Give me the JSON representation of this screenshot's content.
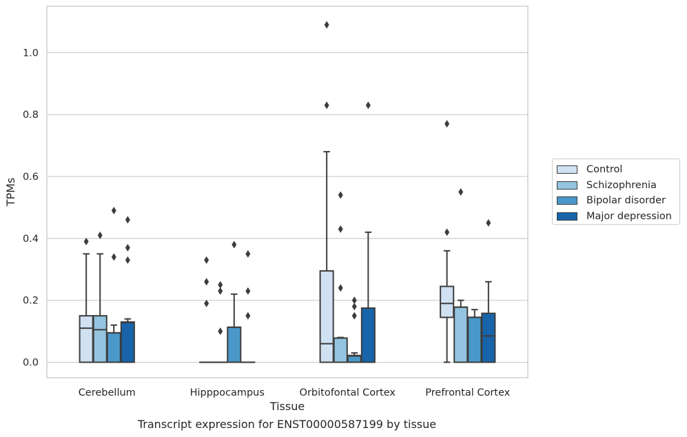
{
  "caption": "Transcript expression for ENST00000587199 by tissue",
  "chart_data": {
    "type": "box",
    "xlabel": "Tissue",
    "ylabel": "TPMs",
    "ylim": [
      -0.05,
      1.15
    ],
    "yticks": [
      "0.0",
      "0.2",
      "0.4",
      "0.6",
      "0.8",
      "1.0"
    ],
    "grid": true,
    "legend_position": "right",
    "categories": [
      "Cerebellum",
      "Hipppocampus",
      "Orbitofontal Cortex",
      "Prefrontal Cortex"
    ],
    "series": [
      {
        "name": "Control",
        "color": "#d0e1f2",
        "boxes": [
          {
            "whislo": 0,
            "q1": 0,
            "med": 0.11,
            "q3": 0.15,
            "whishi": 0.35,
            "fliers": [
              0.39
            ]
          },
          {
            "whislo": 0,
            "q1": 0,
            "med": 0,
            "q3": 0,
            "whishi": 0,
            "fliers": [
              0.19,
              0.26,
              0.33
            ]
          },
          {
            "whislo": 0,
            "q1": 0,
            "med": 0.06,
            "q3": 0.295,
            "whishi": 0.68,
            "fliers": [
              0.83,
              1.09
            ]
          },
          {
            "whislo": 0,
            "q1": 0.145,
            "med": 0.19,
            "q3": 0.245,
            "whishi": 0.36,
            "fliers": [
              0.42,
              0.77
            ]
          }
        ]
      },
      {
        "name": "Schizophrenia",
        "color": "#94c4df",
        "boxes": [
          {
            "whislo": 0,
            "q1": 0,
            "med": 0.105,
            "q3": 0.15,
            "whishi": 0.35,
            "fliers": [
              0.41
            ]
          },
          {
            "whislo": 0,
            "q1": 0,
            "med": 0,
            "q3": 0,
            "whishi": 0,
            "fliers": [
              0.1,
              0.23,
              0.25
            ]
          },
          {
            "whislo": 0,
            "q1": 0,
            "med": 0.078,
            "q3": 0.078,
            "whishi": 0.08,
            "fliers": [
              0.24,
              0.43,
              0.54
            ]
          },
          {
            "whislo": 0,
            "q1": 0,
            "med": 0.178,
            "q3": 0.178,
            "whishi": 0.2,
            "fliers": [
              0.55
            ]
          }
        ]
      },
      {
        "name": "Bipolar disorder",
        "color": "#4a98c9",
        "boxes": [
          {
            "whislo": 0,
            "q1": 0,
            "med": 0.095,
            "q3": 0.095,
            "whishi": 0.12,
            "fliers": [
              0.34,
              0.49
            ]
          },
          {
            "whislo": 0,
            "q1": 0,
            "med": 0.113,
            "q3": 0.113,
            "whishi": 0.22,
            "fliers": [
              0.38
            ]
          },
          {
            "whislo": 0,
            "q1": 0,
            "med": 0.02,
            "q3": 0.022,
            "whishi": 0.03,
            "fliers": [
              0.15,
              0.18,
              0.2
            ]
          },
          {
            "whislo": 0,
            "q1": 0,
            "med": 0.145,
            "q3": 0.145,
            "whishi": 0.17,
            "fliers": []
          }
        ]
      },
      {
        "name": "Major depression",
        "color": "#1764ab",
        "boxes": [
          {
            "whislo": 0,
            "q1": 0,
            "med": 0.128,
            "q3": 0.13,
            "whishi": 0.14,
            "fliers": [
              0.33,
              0.37,
              0.46
            ]
          },
          {
            "whislo": 0,
            "q1": 0,
            "med": 0,
            "q3": 0,
            "whishi": 0,
            "fliers": [
              0.15,
              0.23,
              0.35
            ]
          },
          {
            "whislo": 0,
            "q1": 0,
            "med": 0.175,
            "q3": 0.175,
            "whishi": 0.42,
            "fliers": [
              0.83
            ]
          },
          {
            "whislo": 0,
            "q1": 0,
            "med": 0.085,
            "q3": 0.158,
            "whishi": 0.26,
            "fliers": [
              0.45
            ]
          }
        ]
      }
    ]
  }
}
